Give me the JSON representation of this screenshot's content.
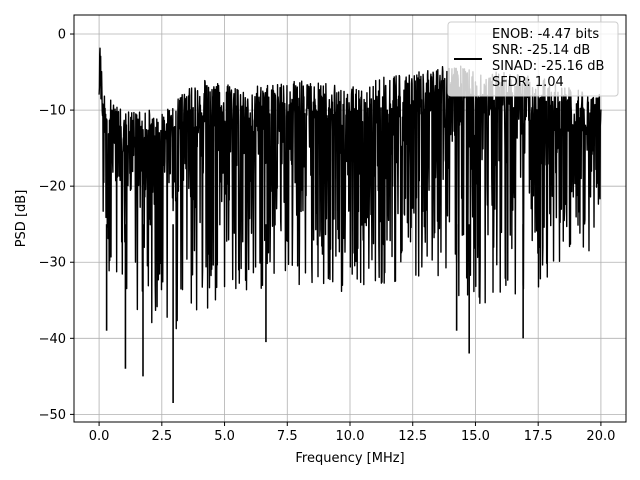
{
  "chart_data": {
    "type": "line",
    "xlabel": "Frequency [MHz]",
    "ylabel": "PSD [dB]",
    "xlim": [
      -1,
      21
    ],
    "ylim": [
      -51,
      2.5
    ],
    "xticks": [
      0.0,
      2.5,
      5.0,
      7.5,
      10.0,
      12.5,
      15.0,
      17.5,
      20.0
    ],
    "xtick_labels": [
      "0.0",
      "2.5",
      "5.0",
      "7.5",
      "10.0",
      "12.5",
      "15.0",
      "17.5",
      "20.0"
    ],
    "yticks": [
      0,
      -10,
      -20,
      -30,
      -40,
      -50
    ],
    "ytick_labels": [
      "0",
      "−10",
      "−20",
      "−30",
      "−40",
      "−50"
    ],
    "grid": true,
    "legend_position": "top-right",
    "legend_lines": [
      "ENOB: -4.47 bits",
      "SNR: -25.14 dB",
      "SINAD: -25.16 dB",
      "SFDR: 1.04"
    ],
    "series": [
      {
        "color": "#000000",
        "description": "noise-like PSD trace spanning 0 to 20 MHz",
        "x_range": [
          0,
          20
        ],
        "upper_envelope": [
          [
            0,
            0
          ],
          [
            0.05,
            -2
          ],
          [
            0.2,
            -8
          ],
          [
            1,
            -10
          ],
          [
            2.5,
            -10
          ],
          [
            4,
            -6
          ],
          [
            6,
            -7
          ],
          [
            8,
            -6
          ],
          [
            10,
            -7
          ],
          [
            12,
            -5
          ],
          [
            14,
            -4
          ],
          [
            16,
            -5
          ],
          [
            18,
            -6
          ],
          [
            20,
            -8
          ]
        ],
        "lower_envelope": [
          [
            0,
            -30
          ],
          [
            1,
            -35
          ],
          [
            2.5,
            -40
          ],
          [
            5,
            -35
          ],
          [
            7.5,
            -33
          ],
          [
            10,
            -34
          ],
          [
            12.5,
            -32
          ],
          [
            15,
            -36
          ],
          [
            17.5,
            -34
          ],
          [
            20,
            -28
          ]
        ],
        "notable_minima": [
          [
            0.3,
            -39
          ],
          [
            1.05,
            -44
          ],
          [
            1.75,
            -45
          ],
          [
            2.95,
            -48.5
          ],
          [
            6.65,
            -40.5
          ],
          [
            14.25,
            -39
          ],
          [
            14.75,
            -42
          ],
          [
            16.9,
            -40
          ]
        ]
      }
    ]
  }
}
